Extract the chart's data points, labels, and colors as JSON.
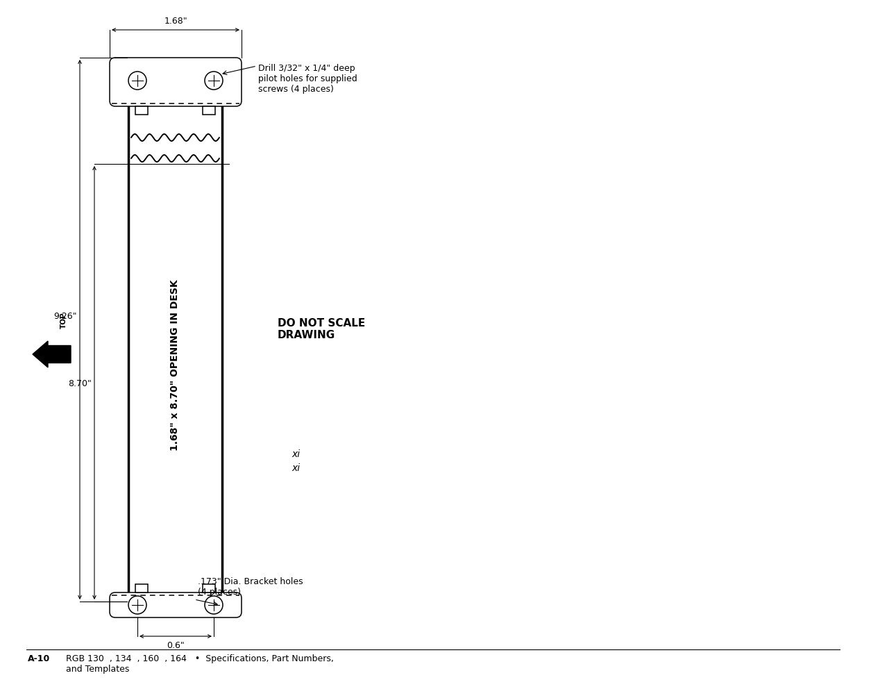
{
  "bg_color": "#ffffff",
  "lc": "#000000",
  "bold_lw": 2.5,
  "thin_lw": 1.1,
  "dim_lw": 0.8,
  "wave_lw": 1.4,
  "label_168": "1.68\"",
  "label_926": "9.26\"",
  "label_870": "8.70\"",
  "label_06": "0.6\"",
  "label_opening": "1.68\" x 8.70\" OPENING IN DESK",
  "label_drill": "Drill 3/32\" x 1/4\" deep\npilot holes for supplied\nscrews (4 places)",
  "label_bracket": ".173\" Dia. Bracket holes\n(4 places)",
  "label_do_not_scale": "DO NOT SCALE\nDRAWING",
  "label_xi": "xi",
  "footer_bold": "A-10",
  "footer_normal": "RGB 130  , 134  , 160  , 164   •  Specifications, Part Numbers,\nand Templates",
  "top_label": "TOP"
}
